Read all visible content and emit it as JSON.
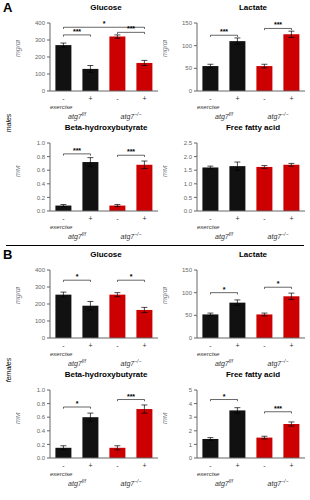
{
  "chart_data": [
    {
      "type": "bar",
      "panel": "A",
      "title": "Glucose",
      "ylabel": "mg/dl",
      "xlabel": "exercise",
      "categories": [
        "-",
        "+",
        "-",
        "+"
      ],
      "groups": [
        {
          "label": "atg7",
          "superscript": "f/f"
        },
        {
          "label": "atg7",
          "superscript": "−/−"
        }
      ],
      "values": [
        270,
        130,
        320,
        165
      ],
      "errors": [
        12,
        20,
        10,
        15
      ],
      "colors": [
        "#111111",
        "#111111",
        "#cc0000",
        "#cc0000"
      ],
      "ylim": [
        0,
        400
      ],
      "yticks": [
        0,
        100,
        200,
        300,
        400
      ],
      "grid": false,
      "annotations": [
        {
          "text": "***",
          "x": [
            0,
            1
          ],
          "y": 330
        },
        {
          "text": "*",
          "x": [
            0,
            3
          ],
          "y": 375
        },
        {
          "text": "***",
          "x": [
            2,
            3
          ],
          "y": 345
        }
      ]
    },
    {
      "type": "bar",
      "panel": "A",
      "title": "Lactate",
      "ylabel": "mg/dl",
      "xlabel": "exercise",
      "categories": [
        "-",
        "+",
        "-",
        "+"
      ],
      "groups": [
        {
          "label": "atg7",
          "superscript": "f/f"
        },
        {
          "label": "atg7",
          "superscript": "−/−"
        }
      ],
      "values": [
        55,
        110,
        55,
        125
      ],
      "errors": [
        4,
        7,
        4,
        7
      ],
      "colors": [
        "#111111",
        "#111111",
        "#cc0000",
        "#cc0000"
      ],
      "ylim": [
        0,
        150
      ],
      "yticks": [
        0,
        50,
        100,
        150
      ],
      "grid": false,
      "annotations": [
        {
          "text": "***",
          "x": [
            0,
            1
          ],
          "y": 123
        },
        {
          "text": "***",
          "x": [
            2,
            3
          ],
          "y": 138
        }
      ]
    },
    {
      "type": "bar",
      "panel": "A",
      "title": "Beta-hydroxybutyrate",
      "ylabel": "mM",
      "xlabel": "exercise",
      "categories": [
        "-",
        "+",
        "-",
        "+"
      ],
      "groups": [
        {
          "label": "atg7",
          "superscript": "f/f"
        },
        {
          "label": "atg7",
          "superscript": "−/−"
        }
      ],
      "values": [
        0.08,
        0.72,
        0.08,
        0.68
      ],
      "errors": [
        0.015,
        0.065,
        0.015,
        0.055
      ],
      "colors": [
        "#111111",
        "#111111",
        "#cc0000",
        "#cc0000"
      ],
      "ylim": [
        0.0,
        1.0
      ],
      "yticks": [
        {
          "value": 0.0,
          "label": "0.0"
        },
        0.2,
        0.4,
        0.6,
        0.8,
        {
          "value": 1.0,
          "label": "1.0"
        }
      ],
      "grid": false,
      "annotations": [
        {
          "text": "***",
          "x": [
            0,
            1
          ],
          "y": 0.84
        },
        {
          "text": "***",
          "x": [
            2,
            3
          ],
          "y": 0.82
        }
      ]
    },
    {
      "type": "bar",
      "panel": "A",
      "title": "Free fatty acid",
      "ylabel": "mM",
      "xlabel": "exercise",
      "categories": [
        "-",
        "+",
        "-",
        "+"
      ],
      "groups": [
        {
          "label": "atg7",
          "superscript": "f/f"
        },
        {
          "label": "atg7",
          "superscript": "−/−"
        }
      ],
      "values": [
        1.6,
        1.65,
        1.62,
        1.7
      ],
      "errors": [
        0.05,
        0.15,
        0.05,
        0.05
      ],
      "colors": [
        "#111111",
        "#111111",
        "#cc0000",
        "#cc0000"
      ],
      "ylim": [
        0.0,
        2.5
      ],
      "yticks": [
        {
          "value": 0.0,
          "label": "0.0"
        },
        0.5,
        {
          "value": 1.0,
          "label": "1.0"
        },
        1.5,
        {
          "value": 2.0,
          "label": "2.0"
        },
        2.5
      ],
      "grid": false,
      "annotations": []
    },
    {
      "type": "bar",
      "panel": "B",
      "title": "Glucose",
      "ylabel": "mg/dl",
      "xlabel": "exercise",
      "categories": [
        "-",
        "+",
        "-",
        "+"
      ],
      "groups": [
        {
          "label": "atg7",
          "superscript": "f/f"
        },
        {
          "label": "atg7",
          "superscript": "−/−"
        }
      ],
      "values": [
        255,
        190,
        255,
        165
      ],
      "errors": [
        15,
        25,
        12,
        15
      ],
      "colors": [
        "#111111",
        "#111111",
        "#cc0000",
        "#cc0000"
      ],
      "ylim": [
        0,
        400
      ],
      "yticks": [
        0,
        100,
        200,
        300,
        400
      ],
      "grid": false,
      "annotations": [
        {
          "text": "*",
          "x": [
            0,
            1
          ],
          "y": 340
        },
        {
          "text": "*",
          "x": [
            2,
            3
          ],
          "y": 340
        }
      ]
    },
    {
      "type": "bar",
      "panel": "B",
      "title": "Lactate",
      "ylabel": "mg/dl",
      "xlabel": "exercise",
      "categories": [
        "-",
        "+",
        "-",
        "+"
      ],
      "groups": [
        {
          "label": "atg7",
          "superscript": "f/f"
        },
        {
          "label": "atg7",
          "superscript": "−/−"
        }
      ],
      "values": [
        52,
        78,
        52,
        92
      ],
      "errors": [
        3,
        6,
        3,
        7
      ],
      "colors": [
        "#111111",
        "#111111",
        "#cc0000",
        "#cc0000"
      ],
      "ylim": [
        0,
        150
      ],
      "yticks": [
        0,
        50,
        100,
        150
      ],
      "grid": false,
      "annotations": [
        {
          "text": "*",
          "x": [
            0,
            1
          ],
          "y": 100
        },
        {
          "text": "*",
          "x": [
            2,
            3
          ],
          "y": 112
        }
      ]
    },
    {
      "type": "bar",
      "panel": "B",
      "title": "Beta-hydroxybutyrate",
      "ylabel": "mM",
      "xlabel": "exercise",
      "categories": [
        "-",
        "+",
        "-",
        "+"
      ],
      "groups": [
        {
          "label": "atg7",
          "superscript": "f/f"
        },
        {
          "label": "atg7",
          "superscript": "−/−"
        }
      ],
      "values": [
        0.15,
        0.6,
        0.15,
        0.72
      ],
      "errors": [
        0.03,
        0.06,
        0.03,
        0.06
      ],
      "colors": [
        "#111111",
        "#111111",
        "#cc0000",
        "#cc0000"
      ],
      "ylim": [
        0.0,
        1.0
      ],
      "yticks": [
        {
          "value": 0.0,
          "label": "0.0"
        },
        0.2,
        0.4,
        0.6,
        0.8,
        {
          "value": 1.0,
          "label": "1.0"
        }
      ],
      "grid": false,
      "annotations": [
        {
          "text": "*",
          "x": [
            0,
            1
          ],
          "y": 0.75
        },
        {
          "text": "***",
          "x": [
            2,
            3
          ],
          "y": 0.86
        }
      ]
    },
    {
      "type": "bar",
      "panel": "B",
      "title": "Free fatty acid",
      "ylabel": "mM",
      "xlabel": "exercise",
      "categories": [
        "-",
        "+",
        "-",
        "+"
      ],
      "groups": [
        {
          "label": "atg7",
          "superscript": "f/f"
        },
        {
          "label": "atg7",
          "superscript": "−/−"
        }
      ],
      "values": [
        1.4,
        3.5,
        1.5,
        2.5
      ],
      "errors": [
        0.1,
        0.2,
        0.1,
        0.15
      ],
      "colors": [
        "#111111",
        "#111111",
        "#cc0000",
        "#cc0000"
      ],
      "ylim": [
        0,
        5
      ],
      "yticks": [
        0,
        1,
        2,
        3,
        4,
        5
      ],
      "grid": false,
      "annotations": [
        {
          "text": "*",
          "x": [
            0,
            1
          ],
          "y": 4.3
        },
        {
          "text": "***",
          "x": [
            2,
            3
          ],
          "y": 3.4
        }
      ]
    }
  ],
  "annotations": [
    {
      "panel": "A",
      "text": "males"
    },
    {
      "panel": "B",
      "text": "females"
    }
  ]
}
